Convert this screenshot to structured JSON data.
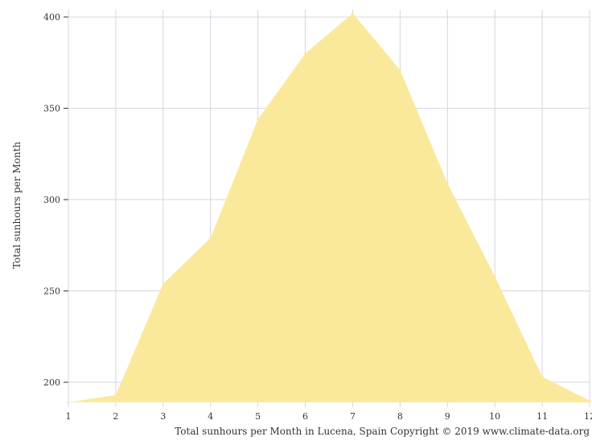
{
  "chart_data": {
    "type": "area",
    "x": [
      1,
      2,
      3,
      4,
      5,
      6,
      7,
      8,
      9,
      10,
      11,
      12
    ],
    "x_tick_labels": [
      "1",
      "2",
      "3",
      "4",
      "5",
      "6",
      "7",
      "8",
      "9",
      "10",
      "11",
      "12"
    ],
    "series": [
      {
        "values": [
          189,
          193,
          254,
          279,
          344,
          380,
          402,
          371,
          309,
          258,
          203,
          190
        ]
      }
    ],
    "y_ticks": [
      200,
      250,
      300,
      350,
      400
    ],
    "y_tick_labels": [
      "200",
      "250",
      "300",
      "350",
      "400"
    ],
    "xlim": [
      1,
      12
    ],
    "ylim": [
      189,
      404
    ],
    "ylabel": "Total sunhours per Month",
    "caption": "Total sunhours per Month in Lucena, Spain Copyright © 2019 www.climate-data.org",
    "grid": true,
    "legend": "none",
    "colors": {
      "fill": "#fbe99b",
      "grid": "#d5d5e0",
      "text": "#333333",
      "background": "#ffffff"
    }
  }
}
